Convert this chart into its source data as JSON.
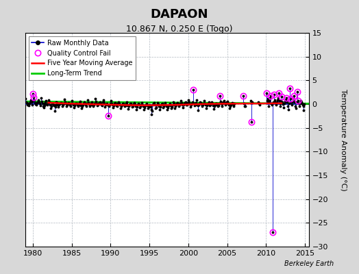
{
  "title": "DAPAON",
  "subtitle": "10.867 N, 0.250 E (Togo)",
  "ylabel": "Temperature Anomaly (°C)",
  "watermark": "Berkeley Earth",
  "xlim": [
    1979.0,
    2015.5
  ],
  "ylim": [
    -30,
    15
  ],
  "yticks": [
    -30,
    -25,
    -20,
    -15,
    -10,
    -5,
    0,
    5,
    10,
    15
  ],
  "xticks": [
    1980,
    1985,
    1990,
    1995,
    2000,
    2005,
    2010,
    2015
  ],
  "bg_color": "#d8d8d8",
  "plot_bg_color": "#ffffff",
  "grid_color": "#b0b8c0",
  "raw_line_color": "#0000cc",
  "raw_dot_color": "#000000",
  "qc_color": "#ff00ff",
  "moving_avg_color": "#ff0000",
  "trend_color": "#00cc00",
  "raw_data": [
    [
      1979.04,
      1.2
    ],
    [
      1979.12,
      0.5
    ],
    [
      1979.21,
      0.3
    ],
    [
      1979.29,
      -0.2
    ],
    [
      1979.37,
      0.1
    ],
    [
      1979.46,
      -0.3
    ],
    [
      1979.54,
      0.2
    ],
    [
      1979.62,
      0.5
    ],
    [
      1979.71,
      0.8
    ],
    [
      1979.79,
      0.4
    ],
    [
      1979.87,
      -0.1
    ],
    [
      1979.95,
      0.6
    ],
    [
      1980.04,
      2.2
    ],
    [
      1980.12,
      1.5
    ],
    [
      1980.21,
      0.8
    ],
    [
      1980.29,
      0.3
    ],
    [
      1980.37,
      0.0
    ],
    [
      1980.46,
      -0.2
    ],
    [
      1980.54,
      0.3
    ],
    [
      1980.62,
      0.5
    ],
    [
      1980.71,
      0.9
    ],
    [
      1980.79,
      0.4
    ],
    [
      1980.87,
      0.1
    ],
    [
      1980.95,
      -0.3
    ],
    [
      1981.04,
      1.3
    ],
    [
      1981.12,
      0.6
    ],
    [
      1981.21,
      0.2
    ],
    [
      1981.29,
      -0.5
    ],
    [
      1981.37,
      -0.7
    ],
    [
      1981.46,
      -0.3
    ],
    [
      1981.54,
      0.1
    ],
    [
      1981.62,
      0.4
    ],
    [
      1981.71,
      0.7
    ],
    [
      1981.79,
      0.0
    ],
    [
      1981.87,
      -0.2
    ],
    [
      1981.95,
      0.3
    ],
    [
      1982.04,
      0.8
    ],
    [
      1982.12,
      0.4
    ],
    [
      1982.21,
      -0.1
    ],
    [
      1982.29,
      -0.8
    ],
    [
      1982.37,
      -0.4
    ],
    [
      1982.46,
      0.1
    ],
    [
      1982.54,
      0.2
    ],
    [
      1982.62,
      -0.1
    ],
    [
      1982.71,
      -0.3
    ],
    [
      1982.79,
      -1.5
    ],
    [
      1982.87,
      -0.6
    ],
    [
      1982.95,
      -0.2
    ],
    [
      1983.04,
      0.5
    ],
    [
      1983.12,
      0.3
    ],
    [
      1983.21,
      -0.2
    ],
    [
      1983.29,
      -0.6
    ],
    [
      1983.37,
      -0.1
    ],
    [
      1983.46,
      0.2
    ],
    [
      1983.54,
      0.1
    ],
    [
      1983.62,
      0.3
    ],
    [
      1983.71,
      0.2
    ],
    [
      1983.79,
      -0.4
    ],
    [
      1983.87,
      -0.1
    ],
    [
      1983.95,
      0.1
    ],
    [
      1984.04,
      1.0
    ],
    [
      1984.12,
      0.5
    ],
    [
      1984.21,
      0.1
    ],
    [
      1984.29,
      -0.4
    ],
    [
      1984.37,
      -0.2
    ],
    [
      1984.46,
      0.1
    ],
    [
      1984.54,
      0.2
    ],
    [
      1984.62,
      0.3
    ],
    [
      1984.71,
      0.1
    ],
    [
      1984.79,
      -0.2
    ],
    [
      1984.87,
      -0.5
    ],
    [
      1984.95,
      0.2
    ],
    [
      1985.04,
      0.7
    ],
    [
      1985.12,
      0.2
    ],
    [
      1985.21,
      -0.1
    ],
    [
      1985.29,
      -0.7
    ],
    [
      1985.37,
      -0.3
    ],
    [
      1985.46,
      0.1
    ],
    [
      1985.54,
      0.2
    ],
    [
      1985.62,
      0.1
    ],
    [
      1985.71,
      -0.2
    ],
    [
      1985.79,
      -0.5
    ],
    [
      1985.87,
      -0.1
    ],
    [
      1985.95,
      0.3
    ],
    [
      1986.04,
      0.6
    ],
    [
      1986.12,
      0.2
    ],
    [
      1986.21,
      -0.3
    ],
    [
      1986.29,
      -0.8
    ],
    [
      1986.37,
      -0.4
    ],
    [
      1986.46,
      -0.1
    ],
    [
      1986.54,
      0.2
    ],
    [
      1986.62,
      0.4
    ],
    [
      1986.71,
      0.2
    ],
    [
      1986.79,
      -0.2
    ],
    [
      1986.87,
      -0.4
    ],
    [
      1986.95,
      0.2
    ],
    [
      1987.04,
      0.8
    ],
    [
      1987.12,
      0.3
    ],
    [
      1987.21,
      0.0
    ],
    [
      1987.29,
      -0.5
    ],
    [
      1987.37,
      -0.1
    ],
    [
      1987.46,
      0.2
    ],
    [
      1987.54,
      0.4
    ],
    [
      1987.62,
      0.3
    ],
    [
      1987.71,
      -0.1
    ],
    [
      1987.79,
      -0.4
    ],
    [
      1987.87,
      -0.2
    ],
    [
      1987.95,
      0.1
    ],
    [
      1988.04,
      1.1
    ],
    [
      1988.12,
      0.6
    ],
    [
      1988.21,
      0.2
    ],
    [
      1988.29,
      -0.3
    ],
    [
      1988.37,
      -0.1
    ],
    [
      1988.46,
      0.2
    ],
    [
      1988.54,
      0.3
    ],
    [
      1988.62,
      0.5
    ],
    [
      1988.71,
      0.2
    ],
    [
      1988.79,
      -0.1
    ],
    [
      1988.87,
      -0.3
    ],
    [
      1988.95,
      0.4
    ],
    [
      1989.04,
      0.9
    ],
    [
      1989.12,
      0.4
    ],
    [
      1989.21,
      0.1
    ],
    [
      1989.29,
      -0.6
    ],
    [
      1989.37,
      -0.2
    ],
    [
      1989.46,
      0.0
    ],
    [
      1989.54,
      0.2
    ],
    [
      1989.62,
      -0.1
    ],
    [
      1989.71,
      -2.5
    ],
    [
      1989.79,
      -0.4
    ],
    [
      1989.87,
      -0.2
    ],
    [
      1989.95,
      0.2
    ],
    [
      1990.04,
      0.7
    ],
    [
      1990.12,
      0.2
    ],
    [
      1990.21,
      -0.1
    ],
    [
      1990.29,
      -0.7
    ],
    [
      1990.37,
      -0.3
    ],
    [
      1990.46,
      0.1
    ],
    [
      1990.54,
      0.2
    ],
    [
      1990.62,
      0.3
    ],
    [
      1990.71,
      0.0
    ],
    [
      1990.79,
      -0.3
    ],
    [
      1990.87,
      -0.5
    ],
    [
      1990.95,
      0.2
    ],
    [
      1991.04,
      0.5
    ],
    [
      1991.12,
      0.1
    ],
    [
      1991.21,
      -0.2
    ],
    [
      1991.29,
      -0.8
    ],
    [
      1991.37,
      -0.4
    ],
    [
      1991.46,
      -0.1
    ],
    [
      1991.54,
      0.1
    ],
    [
      1991.62,
      0.2
    ],
    [
      1991.71,
      -0.1
    ],
    [
      1991.79,
      -0.5
    ],
    [
      1991.87,
      -0.3
    ],
    [
      1991.95,
      0.1
    ],
    [
      1992.04,
      0.4
    ],
    [
      1992.12,
      0.0
    ],
    [
      1992.21,
      -0.3
    ],
    [
      1992.29,
      -1.0
    ],
    [
      1992.37,
      -0.5
    ],
    [
      1992.46,
      -0.1
    ],
    [
      1992.54,
      0.1
    ],
    [
      1992.62,
      0.2
    ],
    [
      1992.71,
      -0.1
    ],
    [
      1992.79,
      -0.6
    ],
    [
      1992.87,
      -0.4
    ],
    [
      1992.95,
      0.0
    ],
    [
      1993.04,
      0.3
    ],
    [
      1993.12,
      0.0
    ],
    [
      1993.21,
      -0.4
    ],
    [
      1993.29,
      -1.1
    ],
    [
      1993.37,
      -0.6
    ],
    [
      1993.46,
      -0.2
    ],
    [
      1993.54,
      0.0
    ],
    [
      1993.62,
      0.2
    ],
    [
      1993.71,
      -0.2
    ],
    [
      1993.79,
      -0.7
    ],
    [
      1993.87,
      -0.5
    ],
    [
      1993.95,
      -0.1
    ],
    [
      1994.04,
      0.3
    ],
    [
      1994.12,
      -0.1
    ],
    [
      1994.21,
      -0.5
    ],
    [
      1994.29,
      -1.2
    ],
    [
      1994.37,
      -0.7
    ],
    [
      1994.46,
      -0.3
    ],
    [
      1994.54,
      -0.1
    ],
    [
      1994.62,
      0.1
    ],
    [
      1994.71,
      -0.3
    ],
    [
      1994.79,
      -0.8
    ],
    [
      1994.87,
      -0.6
    ],
    [
      1994.95,
      -0.2
    ],
    [
      1995.04,
      -0.3
    ],
    [
      1995.12,
      -0.6
    ],
    [
      1995.21,
      -1.2
    ],
    [
      1995.29,
      -2.2
    ],
    [
      1995.37,
      -1.5
    ],
    [
      1995.46,
      -0.2
    ],
    [
      1995.54,
      0.2
    ],
    [
      1995.62,
      0.3
    ],
    [
      1995.71,
      -0.1
    ],
    [
      1995.79,
      -0.9
    ],
    [
      1995.87,
      -0.7
    ],
    [
      1995.95,
      -0.2
    ],
    [
      1996.04,
      0.3
    ],
    [
      1996.12,
      0.0
    ],
    [
      1996.21,
      -0.4
    ],
    [
      1996.29,
      -1.1
    ],
    [
      1996.37,
      -0.6
    ],
    [
      1996.46,
      -0.2
    ],
    [
      1996.54,
      0.0
    ],
    [
      1996.62,
      0.2
    ],
    [
      1996.71,
      -0.2
    ],
    [
      1996.79,
      -0.7
    ],
    [
      1996.87,
      -0.5
    ],
    [
      1996.95,
      -0.1
    ],
    [
      1997.04,
      0.3
    ],
    [
      1997.12,
      -0.1
    ],
    [
      1997.21,
      -0.5
    ],
    [
      1997.29,
      -1.2
    ],
    [
      1997.37,
      -0.7
    ],
    [
      1997.46,
      -0.3
    ],
    [
      1997.54,
      -0.1
    ],
    [
      1997.62,
      0.1
    ],
    [
      1997.71,
      -0.3
    ],
    [
      1997.79,
      -0.8
    ],
    [
      1997.87,
      -0.6
    ],
    [
      1997.95,
      -0.2
    ],
    [
      1998.04,
      0.5
    ],
    [
      1998.12,
      0.1
    ],
    [
      1998.21,
      -0.2
    ],
    [
      1998.29,
      -0.9
    ],
    [
      1998.37,
      -0.4
    ],
    [
      1998.46,
      -0.1
    ],
    [
      1998.54,
      0.2
    ],
    [
      1998.62,
      0.3
    ],
    [
      1998.71,
      0.0
    ],
    [
      1998.79,
      -0.4
    ],
    [
      1998.87,
      -0.2
    ],
    [
      1998.95,
      0.2
    ],
    [
      1999.04,
      0.7
    ],
    [
      1999.12,
      0.3
    ],
    [
      1999.21,
      -0.1
    ],
    [
      1999.29,
      -0.7
    ],
    [
      1999.37,
      -0.2
    ],
    [
      1999.46,
      0.1
    ],
    [
      1999.54,
      0.3
    ],
    [
      1999.62,
      0.5
    ],
    [
      1999.71,
      0.2
    ],
    [
      1999.79,
      -0.2
    ],
    [
      1999.87,
      -0.1
    ],
    [
      1999.95,
      0.3
    ],
    [
      2000.04,
      0.8
    ],
    [
      2000.12,
      0.4
    ],
    [
      2000.21,
      0.0
    ],
    [
      2000.29,
      -0.6
    ],
    [
      2000.37,
      -0.1
    ],
    [
      2000.46,
      0.2
    ],
    [
      2000.54,
      0.4
    ],
    [
      2000.62,
      3.0
    ],
    [
      2000.71,
      0.2
    ],
    [
      2000.79,
      -0.3
    ],
    [
      2000.87,
      -0.1
    ],
    [
      2000.95,
      0.3
    ],
    [
      2001.04,
      0.9
    ],
    [
      2001.12,
      -0.2
    ],
    [
      2001.21,
      -0.3
    ],
    [
      2001.29,
      -1.3
    ],
    [
      2001.37,
      -0.2
    ],
    [
      2001.46,
      0.2
    ],
    [
      2001.54,
      0.4
    ],
    [
      2001.62,
      0.3
    ],
    [
      2001.71,
      0.0
    ],
    [
      2001.79,
      -0.4
    ],
    [
      2001.87,
      -0.2
    ],
    [
      2001.95,
      0.2
    ],
    [
      2002.04,
      0.7
    ],
    [
      2002.12,
      0.2
    ],
    [
      2002.21,
      -0.1
    ],
    [
      2002.29,
      -0.8
    ],
    [
      2002.37,
      -0.3
    ],
    [
      2002.46,
      0.0
    ],
    [
      2002.54,
      0.2
    ],
    [
      2002.62,
      0.4
    ],
    [
      2002.71,
      0.1
    ],
    [
      2002.79,
      -0.3
    ],
    [
      2002.87,
      -0.1
    ],
    [
      2002.95,
      0.2
    ],
    [
      2003.04,
      0.4
    ],
    [
      2003.12,
      0.1
    ],
    [
      2003.21,
      -0.3
    ],
    [
      2003.29,
      -1.0
    ],
    [
      2003.37,
      -0.5
    ],
    [
      2003.46,
      -0.1
    ],
    [
      2003.54,
      0.1
    ],
    [
      2003.62,
      0.2
    ],
    [
      2003.71,
      -0.1
    ],
    [
      2003.79,
      -0.5
    ],
    [
      2003.87,
      -0.3
    ],
    [
      2003.95,
      0.1
    ],
    [
      2004.04,
      1.7
    ],
    [
      2004.12,
      0.6
    ],
    [
      2004.21,
      0.1
    ],
    [
      2004.29,
      -0.4
    ],
    [
      2004.37,
      0.0
    ],
    [
      2004.46,
      0.3
    ],
    [
      2004.54,
      0.5
    ],
    [
      2004.62,
      0.7
    ],
    [
      2004.71,
      0.3
    ],
    [
      2004.79,
      -0.1
    ],
    [
      2004.87,
      0.1
    ],
    [
      2004.95,
      0.5
    ],
    [
      2005.04,
      0.6
    ],
    [
      2005.12,
      0.1
    ],
    [
      2005.21,
      -0.2
    ],
    [
      2005.29,
      -0.9
    ],
    [
      2005.37,
      -0.4
    ],
    [
      2005.46,
      -0.1
    ],
    [
      2005.54,
      0.2
    ],
    [
      2005.62,
      0.3
    ],
    [
      2005.71,
      0.0
    ],
    [
      2005.79,
      -0.4
    ],
    [
      2005.87,
      -0.2
    ],
    [
      2005.95,
      0.2
    ],
    [
      2007.04,
      1.7
    ],
    [
      2007.12,
      0.2
    ],
    [
      2007.21,
      -0.4
    ],
    [
      2007.29,
      -0.4
    ],
    [
      2008.04,
      0.7
    ],
    [
      2008.12,
      -3.7
    ],
    [
      2008.21,
      0.4
    ],
    [
      2009.04,
      0.5
    ],
    [
      2009.12,
      0.1
    ],
    [
      2009.21,
      -0.2
    ],
    [
      2010.04,
      2.3
    ],
    [
      2010.12,
      0.7
    ],
    [
      2010.21,
      1.1
    ],
    [
      2010.29,
      0.4
    ],
    [
      2010.37,
      -0.4
    ],
    [
      2010.46,
      0.7
    ],
    [
      2010.54,
      1.3
    ],
    [
      2010.62,
      1.8
    ],
    [
      2010.71,
      0.2
    ],
    [
      2010.79,
      -0.1
    ],
    [
      2010.87,
      -26.9
    ],
    [
      2010.95,
      0.4
    ],
    [
      2011.04,
      2.0
    ],
    [
      2011.12,
      0.9
    ],
    [
      2011.21,
      0.4
    ],
    [
      2011.29,
      -0.2
    ],
    [
      2011.37,
      0.4
    ],
    [
      2011.46,
      0.9
    ],
    [
      2011.54,
      1.3
    ],
    [
      2011.62,
      2.3
    ],
    [
      2011.71,
      0.7
    ],
    [
      2011.79,
      0.1
    ],
    [
      2011.87,
      -0.4
    ],
    [
      2011.95,
      0.7
    ],
    [
      2012.04,
      1.6
    ],
    [
      2012.12,
      0.4
    ],
    [
      2012.21,
      0.0
    ],
    [
      2012.29,
      -0.7
    ],
    [
      2012.37,
      0.1
    ],
    [
      2012.46,
      0.6
    ],
    [
      2012.54,
      0.9
    ],
    [
      2012.62,
      1.3
    ],
    [
      2012.71,
      0.4
    ],
    [
      2012.79,
      -0.4
    ],
    [
      2012.87,
      -1.1
    ],
    [
      2012.95,
      0.2
    ],
    [
      2013.04,
      3.3
    ],
    [
      2013.12,
      1.1
    ],
    [
      2013.21,
      0.4
    ],
    [
      2013.29,
      -0.2
    ],
    [
      2013.37,
      0.4
    ],
    [
      2013.46,
      0.7
    ],
    [
      2013.54,
      1.1
    ],
    [
      2013.62,
      1.8
    ],
    [
      2013.71,
      0.4
    ],
    [
      2013.79,
      -0.4
    ],
    [
      2013.87,
      -0.9
    ],
    [
      2013.95,
      0.4
    ],
    [
      2014.04,
      2.6
    ],
    [
      2014.12,
      0.7
    ],
    [
      2014.21,
      0.2
    ],
    [
      2014.29,
      -0.4
    ],
    [
      2014.37,
      0.2
    ],
    [
      2014.46,
      0.7
    ],
    [
      2014.54,
      0.4
    ],
    [
      2014.62,
      0.1
    ],
    [
      2014.71,
      -0.2
    ],
    [
      2014.79,
      -1.3
    ],
    [
      2014.87,
      -0.4
    ],
    [
      2014.95,
      0.0
    ]
  ],
  "qc_fail_points": [
    [
      1980.04,
      2.2
    ],
    [
      1980.12,
      1.5
    ],
    [
      1989.71,
      -2.5
    ],
    [
      2000.62,
      3.0
    ],
    [
      2004.04,
      1.7
    ],
    [
      2007.04,
      1.7
    ],
    [
      2008.12,
      -3.7
    ],
    [
      2010.04,
      2.3
    ],
    [
      2010.62,
      1.8
    ],
    [
      2010.87,
      -26.9
    ],
    [
      2011.04,
      2.0
    ],
    [
      2011.62,
      2.3
    ],
    [
      2012.04,
      1.6
    ],
    [
      2012.62,
      1.3
    ],
    [
      2013.04,
      3.3
    ],
    [
      2013.12,
      1.1
    ],
    [
      2013.62,
      1.8
    ],
    [
      2014.04,
      2.6
    ],
    [
      2014.12,
      0.7
    ]
  ],
  "moving_avg_x": [
    1982.0,
    1984.0,
    1986.0,
    1988.0,
    1990.0,
    1992.0,
    1994.0,
    1996.0,
    1998.0,
    2000.0,
    2002.0,
    2004.0,
    2006.0,
    2008.0,
    2010.0,
    2012.0
  ],
  "moving_avg_y": [
    0.3,
    0.15,
    0.05,
    -0.05,
    -0.12,
    -0.2,
    -0.25,
    -0.22,
    -0.18,
    -0.08,
    0.02,
    0.08,
    0.1,
    0.12,
    0.14,
    0.18
  ],
  "trend_x": [
    1979.0,
    2015.5
  ],
  "trend_y": [
    0.55,
    0.1
  ]
}
